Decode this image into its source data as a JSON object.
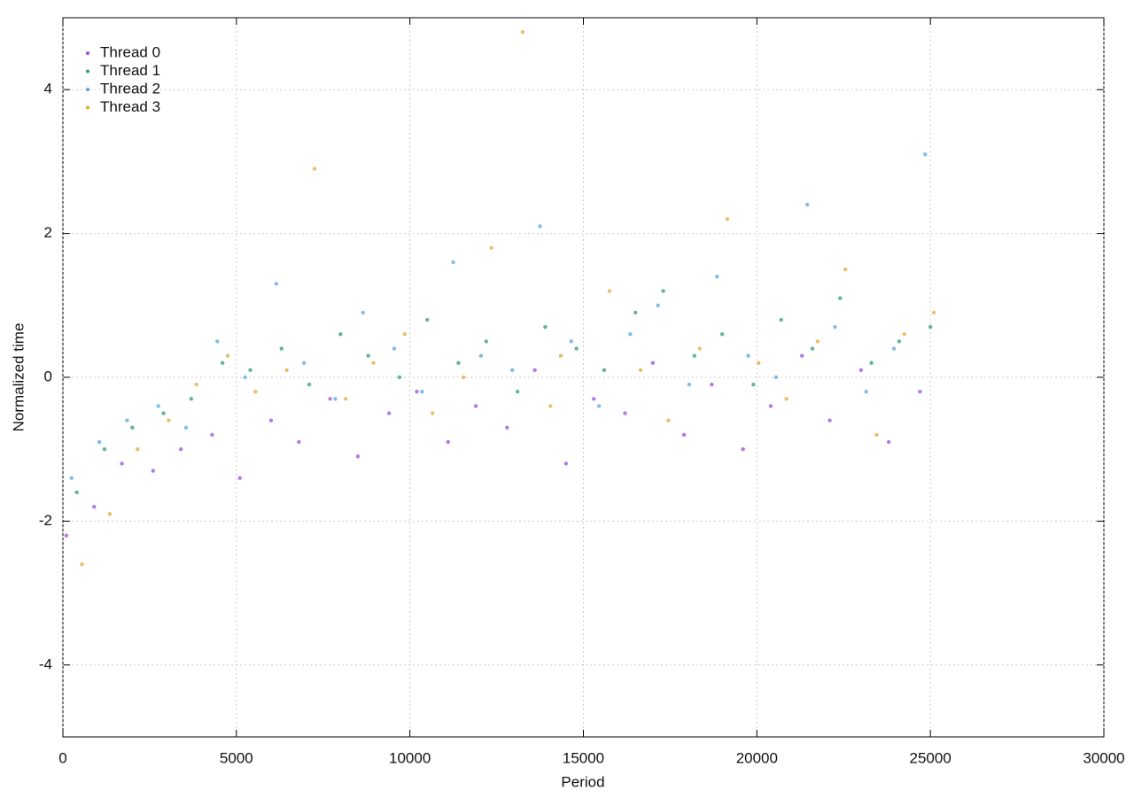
{
  "chart_data": {
    "type": "scatter",
    "xlabel": "Period",
    "ylabel": "Normalized time",
    "xlim": [
      0,
      30000
    ],
    "ylim": [
      -5,
      5
    ],
    "xticks": [
      0,
      5000,
      10000,
      15000,
      20000,
      25000,
      30000
    ],
    "yticks": [
      -4,
      -2,
      0,
      2,
      4
    ],
    "grid": true,
    "legend": "upper-left",
    "series": [
      {
        "name": "Thread 0",
        "color": "#9b4fd9",
        "x": [
          100,
          900,
          1700,
          2600,
          3400,
          4300,
          5100,
          6000,
          6800,
          7700,
          8500,
          9400,
          10200,
          11100,
          11900,
          12800,
          13600,
          14500,
          15300,
          16200,
          17000,
          17900,
          18700,
          19600,
          20400,
          21300,
          22100,
          23000,
          23800,
          24700
        ],
        "values": [
          -2.2,
          -1.8,
          -1.2,
          -1.3,
          -1.0,
          -0.8,
          -1.4,
          -0.6,
          -0.9,
          -0.3,
          -1.1,
          -0.5,
          -0.2,
          -0.9,
          -0.4,
          -0.7,
          0.1,
          -1.2,
          -0.3,
          -0.5,
          0.2,
          -0.8,
          -0.1,
          -1.0,
          -0.4,
          0.3,
          -0.6,
          0.1,
          -0.9,
          -0.2
        ]
      },
      {
        "name": "Thread 1",
        "color": "#2e9e6e",
        "x": [
          400,
          1200,
          2000,
          2900,
          3700,
          4600,
          5400,
          6300,
          7100,
          8000,
          8800,
          9700,
          10500,
          11400,
          12200,
          13100,
          13900,
          14800,
          15600,
          16500,
          17300,
          18200,
          19000,
          19900,
          20700,
          21600,
          22400,
          23300,
          24100,
          25000
        ],
        "values": [
          -1.6,
          -1.0,
          -0.7,
          -0.5,
          -0.3,
          0.2,
          0.1,
          0.4,
          -0.1,
          0.6,
          0.3,
          0.0,
          0.8,
          0.2,
          0.5,
          -0.2,
          0.7,
          0.4,
          0.1,
          0.9,
          1.2,
          0.3,
          0.6,
          -0.1,
          0.8,
          0.4,
          1.1,
          0.2,
          0.5,
          0.7
        ]
      },
      {
        "name": "Thread 2",
        "color": "#56a8e0",
        "x": [
          250,
          1050,
          1850,
          2750,
          3550,
          4450,
          5250,
          6150,
          6950,
          7850,
          8650,
          9550,
          10350,
          11250,
          12050,
          12950,
          13750,
          14650,
          15450,
          16350,
          17150,
          18050,
          18850,
          19750,
          20550,
          21450,
          22250,
          23150,
          23950,
          24850
        ],
        "values": [
          -1.4,
          -0.9,
          -0.6,
          -0.4,
          -0.7,
          0.5,
          0.0,
          1.3,
          0.2,
          -0.3,
          0.9,
          0.4,
          -0.2,
          1.6,
          0.3,
          0.1,
          2.1,
          0.5,
          -0.4,
          0.6,
          1.0,
          -0.1,
          1.4,
          0.3,
          0.0,
          2.4,
          0.7,
          -0.2,
          0.4,
          3.1
        ]
      },
      {
        "name": "Thread 3",
        "color": "#e0a93a",
        "x": [
          550,
          1350,
          2150,
          3050,
          3850,
          4750,
          5550,
          6450,
          7250,
          8150,
          8950,
          9850,
          10650,
          11550,
          12350,
          13250,
          14050,
          14350,
          15750,
          16650,
          17450,
          18350,
          19150,
          20050,
          20850,
          21750,
          22550,
          23450,
          24250,
          25100
        ],
        "values": [
          -2.6,
          -1.9,
          -1.0,
          -0.6,
          -0.1,
          0.3,
          -0.2,
          0.1,
          2.9,
          -0.3,
          0.2,
          0.6,
          -0.5,
          0.0,
          1.8,
          4.8,
          -0.4,
          0.3,
          1.2,
          0.1,
          -0.6,
          0.4,
          2.2,
          0.2,
          -0.3,
          0.5,
          1.5,
          -0.8,
          0.6,
          0.9
        ]
      }
    ]
  }
}
